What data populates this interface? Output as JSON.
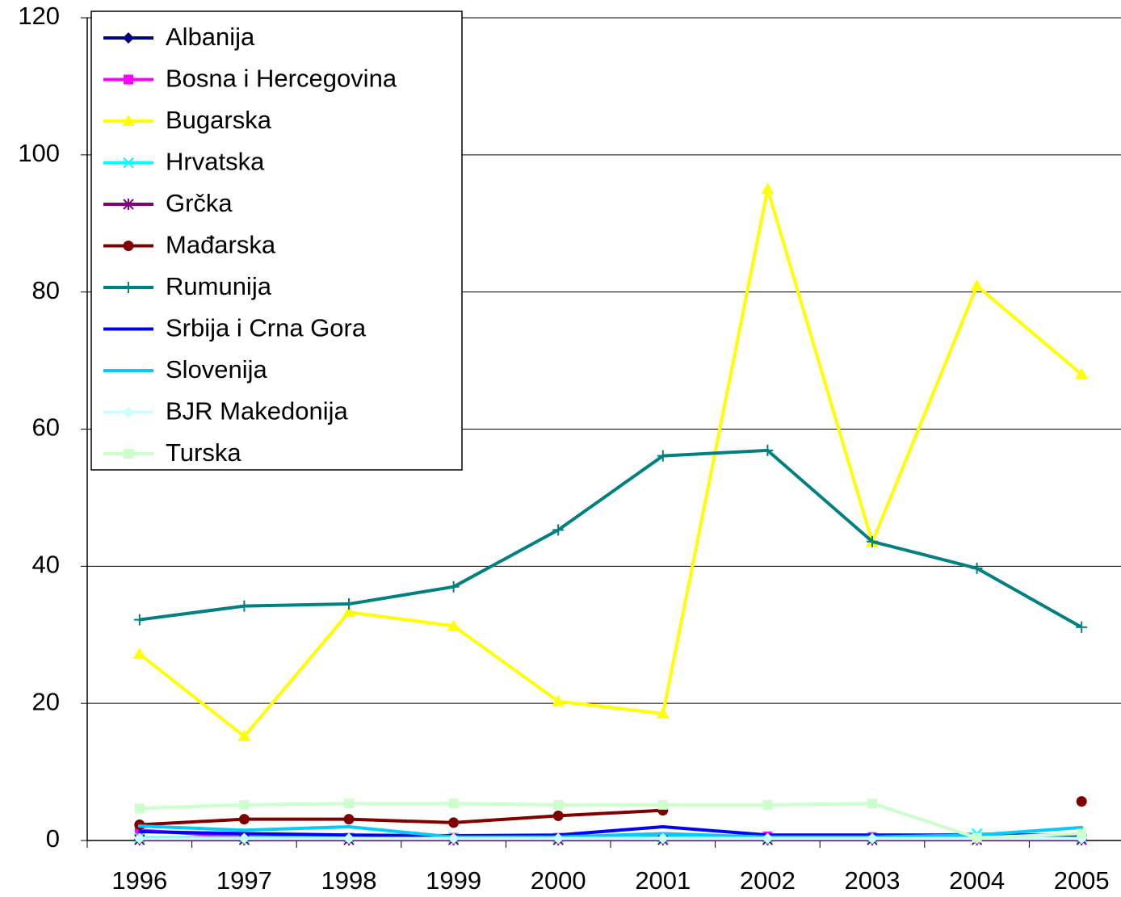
{
  "chart_data": {
    "type": "line",
    "categories": [
      "1996",
      "1997",
      "1998",
      "1999",
      "2000",
      "2001",
      "2002",
      "2003",
      "2004",
      "2005"
    ],
    "ylim": [
      0,
      120
    ],
    "yticks": [
      0,
      20,
      40,
      60,
      80,
      100,
      120
    ],
    "grid": true,
    "legend": "upper-left",
    "series": [
      {
        "name": "Albanija",
        "color": "#000080",
        "marker": "diamond",
        "values": [
          0.2,
          0.2,
          0.2,
          0.2,
          0.2,
          0.2,
          0.2,
          0.2,
          0.2,
          0.2
        ]
      },
      {
        "name": "Bosna i Hercegovina",
        "color": "#ff00ff",
        "marker": "square",
        "values": [
          1.5,
          0.5,
          0.4,
          0.4,
          0.4,
          0.5,
          0.6,
          0.5,
          0.4,
          0.4
        ]
      },
      {
        "name": "Bugarska",
        "color": "#ffff00",
        "marker": "triangle",
        "values": [
          27.2,
          15.2,
          33.3,
          31.3,
          20.3,
          18.5,
          95,
          43.5,
          80.9,
          68
        ]
      },
      {
        "name": "Hrvatska",
        "color": "#00ffff",
        "marker": "x",
        "values": [
          0.4,
          0.4,
          0.4,
          0.4,
          0.4,
          0.4,
          0.4,
          0.4,
          1.0,
          0.4
        ]
      },
      {
        "name": "Grčka",
        "color": "#800080",
        "marker": "asterisk",
        "values": [
          0.1,
          0.1,
          0.1,
          0.1,
          0.1,
          0.1,
          0.1,
          0.1,
          0.1,
          0.1
        ]
      },
      {
        "name": "Mađarska",
        "color": "#800000",
        "marker": "circle",
        "values": [
          2.3,
          3.1,
          3.1,
          2.6,
          3.6,
          4.4,
          null,
          null,
          null,
          5.7
        ]
      },
      {
        "name": "Rumunija",
        "color": "#008080",
        "marker": "plus",
        "values": [
          32.2,
          34.2,
          34.5,
          37,
          45.3,
          56.1,
          56.9,
          43.6,
          39.7,
          31.1
        ]
      },
      {
        "name": "Srbija i Crna Gora",
        "color": "#0000ff",
        "marker": "none",
        "values": [
          1.3,
          1.0,
          0.8,
          0.7,
          0.8,
          2.0,
          0.8,
          0.8,
          0.8,
          0.8
        ]
      },
      {
        "name": "Slovenija",
        "color": "#00ccff",
        "marker": "none",
        "values": [
          2.1,
          1.5,
          2.0,
          0.5,
          0.5,
          1.0,
          0.5,
          0.5,
          0.8,
          1.9
        ]
      },
      {
        "name": "BJR Makedonija",
        "color": "#ccffff",
        "marker": "diamond",
        "values": [
          0.3,
          0.3,
          0.3,
          0.3,
          0.3,
          0.3,
          0.3,
          0.3,
          0.3,
          0.3
        ]
      },
      {
        "name": "Turska",
        "color": "#ccffcc",
        "marker": "square",
        "values": [
          4.7,
          5.2,
          5.4,
          5.4,
          5.2,
          5.2,
          5.2,
          5.4,
          0.4,
          1.0
        ]
      }
    ]
  }
}
